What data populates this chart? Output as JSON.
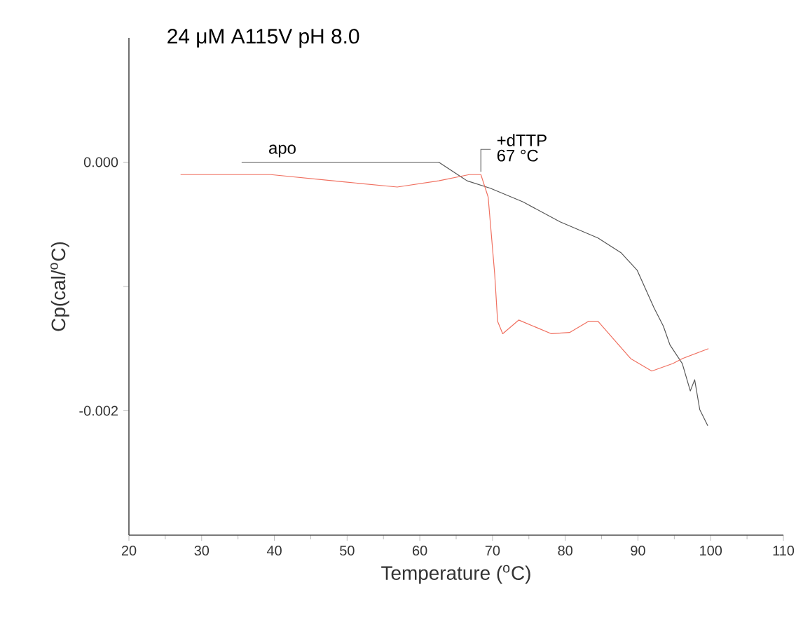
{
  "chart_data": {
    "type": "line",
    "title": "24 μM A115V pH 8.0",
    "xlabel": "Temperature ($^{o}$C)",
    "ylabel": "Cp(cal/$^{o}$C)",
    "xlim": [
      20,
      110
    ],
    "xticks": [
      20,
      30,
      40,
      50,
      60,
      70,
      80,
      90,
      100,
      110
    ],
    "ylim": [
      -0.003,
      0.001
    ],
    "yticks": [
      {
        "value": 0,
        "label": "0.000"
      },
      {
        "value": -0.001,
        "label": null
      },
      {
        "value": -0.002,
        "label": "-0.002"
      }
    ],
    "series": [
      {
        "name": "apo",
        "color": "#555555",
        "x": [
          35.5,
          60.1,
          62.6,
          66.5,
          69.7,
          74.2,
          79.3,
          84.5,
          87.7,
          89.9,
          92.2,
          93.5,
          94.4,
          96.1,
          97.2,
          97.8,
          98.5,
          99.6
        ],
        "values": [
          0.0,
          0.0,
          0.0,
          -0.00015,
          -0.00021,
          -0.00032,
          -0.00048,
          -0.00061,
          -0.00073,
          -0.00087,
          -0.00117,
          -0.00132,
          -0.00147,
          -0.00162,
          -0.00184,
          -0.00175,
          -0.00199,
          -0.00212
        ]
      },
      {
        "name": "+dTTP",
        "color": "#f07060",
        "x": [
          27.1,
          39.5,
          49.8,
          56.9,
          62.6,
          66.8,
          68.4,
          69.4,
          70.3,
          70.7,
          71.4,
          73.6,
          78.1,
          80.6,
          83.2,
          84.5,
          89.0,
          91.9,
          94.8,
          96.1,
          99.7
        ],
        "values": [
          -0.0001,
          -0.0001,
          -0.00016,
          -0.0002,
          -0.00015,
          -0.0001,
          -0.0001,
          -0.00028,
          -0.0009,
          -0.00128,
          -0.00138,
          -0.00127,
          -0.00138,
          -0.00137,
          -0.00128,
          -0.00128,
          -0.00158,
          -0.00168,
          -0.00162,
          -0.00158,
          -0.0015
        ]
      }
    ],
    "annotations": [
      "67 °C"
    ],
    "legend": false,
    "grid": false,
    "marker": "none",
    "line_style": "solid"
  }
}
